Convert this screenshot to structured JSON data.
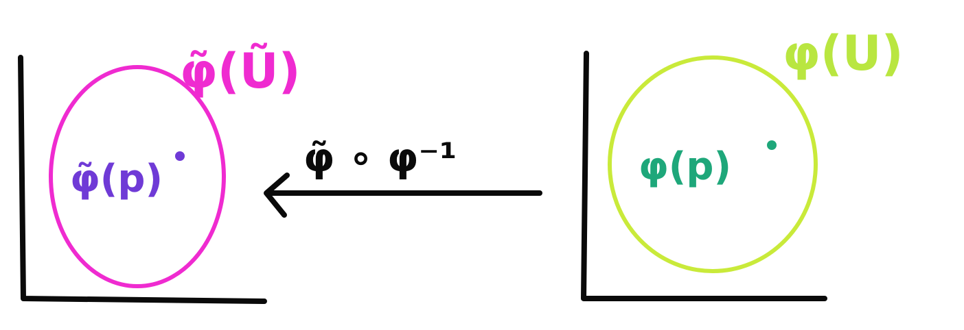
{
  "colors": {
    "axes": "#0a0a0a",
    "left_circle": "#ef2bd0",
    "left_point": "#6f3ad6",
    "right_circle": "#c9ea3a",
    "right_point": "#1ea77a",
    "right_label": "#b9e640",
    "arrow": "#0a0a0a"
  },
  "left_chart": {
    "region_label": "φ̃(Ũ)",
    "point_label": "φ̃(p)"
  },
  "right_chart": {
    "region_label": "φ(U)",
    "point_label": "φ(p)"
  },
  "transition_map": {
    "label": "φ̃ ∘ φ⁻¹",
    "direction": "right-to-left"
  }
}
